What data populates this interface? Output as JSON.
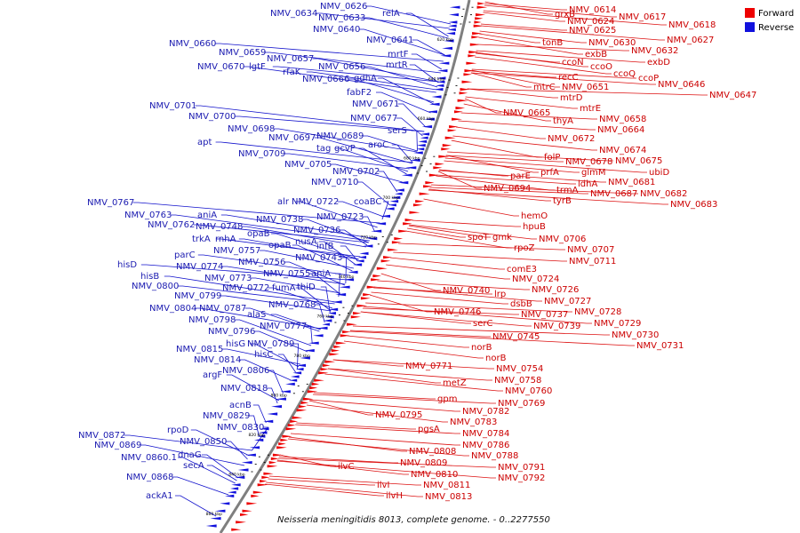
{
  "title": "Neisseria meningitidis 8013, complete genome. - 0..2277550",
  "legend": [
    {
      "label": "Forward",
      "color": "#ee0000"
    },
    {
      "label": "Reverse",
      "color": "#1111dd"
    }
  ],
  "backbone_color": "#7f7f7f",
  "ticks": [
    "620 kbp",
    "640 kbp",
    "660 kbp",
    "680 kbp",
    "700 kbp",
    "720 kbp",
    "740 kbp",
    "760 kbp",
    "780 kbp",
    "800 kbp",
    "820 kbp",
    "840 kbp",
    "860 kbp"
  ],
  "reverse_labels": [
    "NMV_0634",
    "NMV_0626",
    "NMV_0633",
    "relA",
    "NMV_0640",
    "NMV_0641",
    "NMV_0660",
    "NMV_0659",
    "NMV_0657",
    "NMV_0670",
    "lgtF",
    "rfaK",
    "NMV_0656",
    "NMV_0666",
    "gdhA",
    "mrtF",
    "mrtR",
    "fabF2",
    "NMV_0671",
    "NMV_0701",
    "NMV_0700",
    "NMV_0677",
    "serS",
    "NMV_0698",
    "NMV_0697",
    "NMV_0689",
    "aroC",
    "apt",
    "tag",
    "gcvP",
    "NMV_0709",
    "NMV_0705",
    "NMV_0702",
    "NMV_0710",
    "alr",
    "NMV_0722",
    "coaBC",
    "NMV_0767",
    "aniA",
    "NMV_0763",
    "NMV_0723",
    "NMV_0762",
    "NMV_0748",
    "NMV_0738",
    "opaB",
    "NMV_0736",
    "trkA",
    "rnhA",
    "nusA",
    "opaB",
    "infB",
    "NMV_0757",
    "parC",
    "NMV_0756",
    "NMV_0743",
    "hisD",
    "NMV_0774",
    "NMV_0755",
    "aniA",
    "hisB",
    "NMV_0773",
    "NMV_0800",
    "NMV_0772",
    "fumA",
    "thiD",
    "NMV_0799",
    "NMV_0768",
    "NMV_0804",
    "NMV_0787",
    "NMV_0798",
    "alaS",
    "NMV_0777",
    "NMV_0796",
    "hisG",
    "NMV_0789",
    "NMV_0815",
    "hisC",
    "NMV_0814",
    "NMV_0806",
    "argF",
    "NMV_0818",
    "acnB",
    "NMV_0829",
    "NMV_0830",
    "rpoD",
    "NMV_0872",
    "NMV_0850",
    "NMV_0869",
    "dnaG",
    "NMV_0860.1",
    "secA",
    "NMV_0868",
    "ackA1"
  ],
  "forward_labels": [
    "NMV_0614",
    "NMV_0624",
    "NMV_0617",
    "NMV_0618",
    "grxB",
    "NMV_0625",
    "tonB",
    "NMV_0630",
    "NMV_0627",
    "exbB",
    "NMV_0632",
    "ccoN",
    "exbD",
    "ccoO",
    "ccoQ",
    "recC",
    "ccoP",
    "NMV_0646",
    "mtrC",
    "NMV_0651",
    "NMV_0647",
    "mtrD",
    "mtrE",
    "NMV_0665",
    "thyA",
    "NMV_0658",
    "NMV_0664",
    "NMV_0672",
    "NMV_0674",
    "folP",
    "NMV_0678",
    "NMV_0675",
    "glmM",
    "ubiD",
    "prfA",
    "parE",
    "ldhA",
    "NMV_0681",
    "trmA",
    "NMV_0694",
    "NMV_0687",
    "NMV_0682",
    "tyrB",
    "NMV_0683",
    "hemO",
    "hpuB",
    "spoT",
    "gmk",
    "NMV_0706",
    "rpoZ",
    "NMV_0707",
    "NMV_0711",
    "comE3",
    "NMV_0724",
    "NMV_0740",
    "lrp",
    "NMV_0726",
    "dsbB",
    "NMV_0727",
    "NMV_0746",
    "NMV_0737",
    "NMV_0728",
    "serC",
    "NMV_0739",
    "NMV_0729",
    "NMV_0745",
    "NMV_0730",
    "norB",
    "NMV_0731",
    "norB",
    "NMV_0771",
    "NMV_0754",
    "NMV_0758",
    "metZ",
    "NMV_0760",
    "gpm",
    "NMV_0769",
    "NMV_0782",
    "NMV_0795",
    "NMV_0783",
    "pgsA",
    "NMV_0784",
    "NMV_0786",
    "NMV_0808",
    "NMV_0788",
    "NMV_0809",
    "NMV_0791",
    "ilvC",
    "NMV_0810",
    "NMV_0792",
    "ilvI",
    "NMV_0811",
    "ilvH",
    "NMV_0813"
  ]
}
